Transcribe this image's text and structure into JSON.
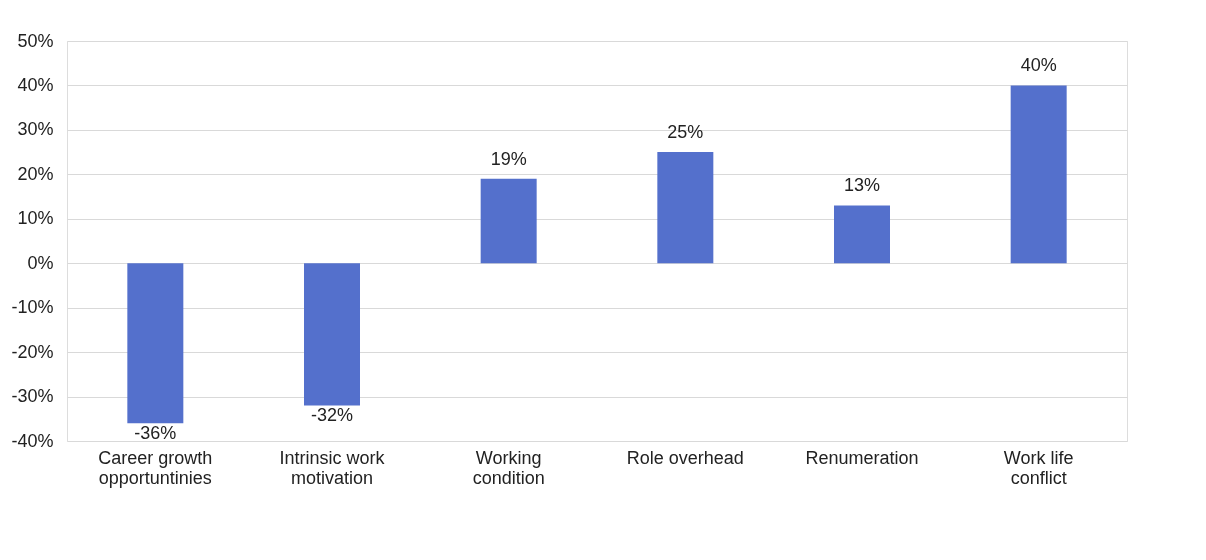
{
  "chart_data": {
    "type": "bar",
    "categories": [
      "Career growth opportuntinies",
      "Intrinsic work motivation",
      "Working condition",
      "Role overhead",
      "Renumeration",
      "Work life conflict"
    ],
    "values": [
      -36,
      -32,
      19,
      25,
      13,
      40
    ],
    "value_labels": [
      "-36%",
      "-32%",
      "19%",
      "25%",
      "13%",
      "40%"
    ],
    "color": "#5470cc",
    "ylim": [
      -40,
      50
    ],
    "yticks": [
      {
        "value": -40,
        "label": "-40%"
      },
      {
        "value": -30,
        "label": "-30%"
      },
      {
        "value": -20,
        "label": "-20%"
      },
      {
        "value": -10,
        "label": "-10%"
      },
      {
        "value": 0,
        "label": "0%"
      },
      {
        "value": 10,
        "label": "10%"
      },
      {
        "value": 20,
        "label": "20%"
      },
      {
        "value": 30,
        "label": "30%"
      },
      {
        "value": 40,
        "label": "40%"
      },
      {
        "value": 50,
        "label": "50%"
      }
    ],
    "grid": "y"
  }
}
